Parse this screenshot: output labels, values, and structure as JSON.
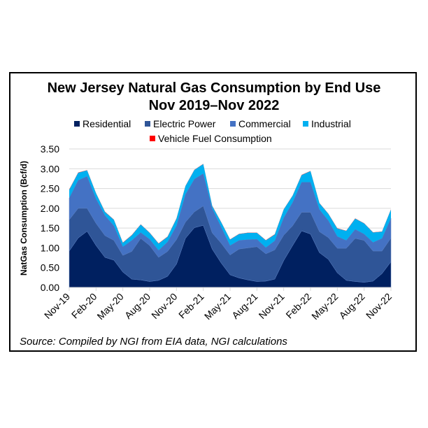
{
  "chart_data": {
    "type": "area",
    "stacked": true,
    "title": "New Jersey Natural Gas Consumption by End Use",
    "subtitle": "Nov 2019–Nov 2022",
    "ylabel": "NatGas Consumption (Bcf/d)",
    "xlabel": "",
    "ylim": [
      0,
      3.5
    ],
    "yticks": [
      "0.00",
      "0.50",
      "1.00",
      "1.50",
      "2.00",
      "2.50",
      "3.00",
      "3.50"
    ],
    "xtick_labels": [
      "Nov-19",
      "Feb-20",
      "May-20",
      "Aug-20",
      "Nov-20",
      "Feb-21",
      "May-21",
      "Aug-21",
      "Nov-21",
      "Feb-22",
      "May-22",
      "Aug-22",
      "Nov-22"
    ],
    "x_start": "Nov-19",
    "x_end": "Nov-22",
    "frequency": "monthly",
    "grid": "horizontal",
    "legend_placement": "top",
    "source": "Source: Compiled by NGI from EIA data, NGI calculations",
    "series": [
      {
        "name": "Residential",
        "color": "#002060",
        "values": [
          0.92,
          1.25,
          1.42,
          1.06,
          0.76,
          0.69,
          0.39,
          0.21,
          0.19,
          0.15,
          0.18,
          0.28,
          0.59,
          1.24,
          1.51,
          1.57,
          0.97,
          0.62,
          0.32,
          0.24,
          0.19,
          0.15,
          0.16,
          0.21,
          0.68,
          1.06,
          1.43,
          1.35,
          0.88,
          0.71,
          0.37,
          0.18,
          0.15,
          0.13,
          0.16,
          0.35,
          0.65
        ]
      },
      {
        "name": "Electric Power",
        "color": "#2f5597",
        "values": [
          0.79,
          0.75,
          0.58,
          0.56,
          0.55,
          0.5,
          0.42,
          0.7,
          1.05,
          0.91,
          0.58,
          0.63,
          0.62,
          0.41,
          0.4,
          0.49,
          0.41,
          0.5,
          0.5,
          0.73,
          0.81,
          0.88,
          0.69,
          0.74,
          0.64,
          0.5,
          0.47,
          0.55,
          0.53,
          0.55,
          0.62,
          0.81,
          1.09,
          1.06,
          0.76,
          0.57,
          0.6
        ]
      },
      {
        "name": "Commercial",
        "color": "#4472c4",
        "values": [
          0.55,
          0.71,
          0.81,
          0.62,
          0.51,
          0.37,
          0.22,
          0.28,
          0.15,
          0.16,
          0.18,
          0.24,
          0.35,
          0.7,
          0.83,
          0.82,
          0.62,
          0.41,
          0.24,
          0.22,
          0.21,
          0.19,
          0.16,
          0.23,
          0.44,
          0.59,
          0.76,
          0.76,
          0.56,
          0.43,
          0.3,
          0.2,
          0.23,
          0.16,
          0.22,
          0.32,
          0.5
        ]
      },
      {
        "name": "Industrial",
        "color": "#00b0f0",
        "values": [
          0.21,
          0.19,
          0.15,
          0.14,
          0.09,
          0.15,
          0.1,
          0.13,
          0.2,
          0.16,
          0.17,
          0.13,
          0.18,
          0.21,
          0.23,
          0.24,
          0.06,
          0.12,
          0.15,
          0.16,
          0.17,
          0.16,
          0.18,
          0.16,
          0.21,
          0.17,
          0.18,
          0.28,
          0.16,
          0.17,
          0.2,
          0.24,
          0.27,
          0.27,
          0.25,
          0.17,
          0.22
        ]
      },
      {
        "name": "Vehicle Fuel Consumption",
        "color": "#ff0000",
        "values": [
          0.01,
          0.005,
          0.005,
          0.005,
          0.005,
          0.005,
          0.005,
          0.005,
          0.005,
          0.005,
          0.005,
          0.005,
          0.005,
          0.005,
          0.005,
          0.005,
          0.005,
          0.005,
          0.005,
          0.005,
          0.005,
          0.005,
          0.005,
          0.005,
          0.005,
          0.005,
          0.005,
          0.005,
          0.005,
          0.005,
          0.005,
          0.005,
          0.005,
          0.005,
          0.005,
          0.005,
          0.005
        ]
      }
    ]
  }
}
